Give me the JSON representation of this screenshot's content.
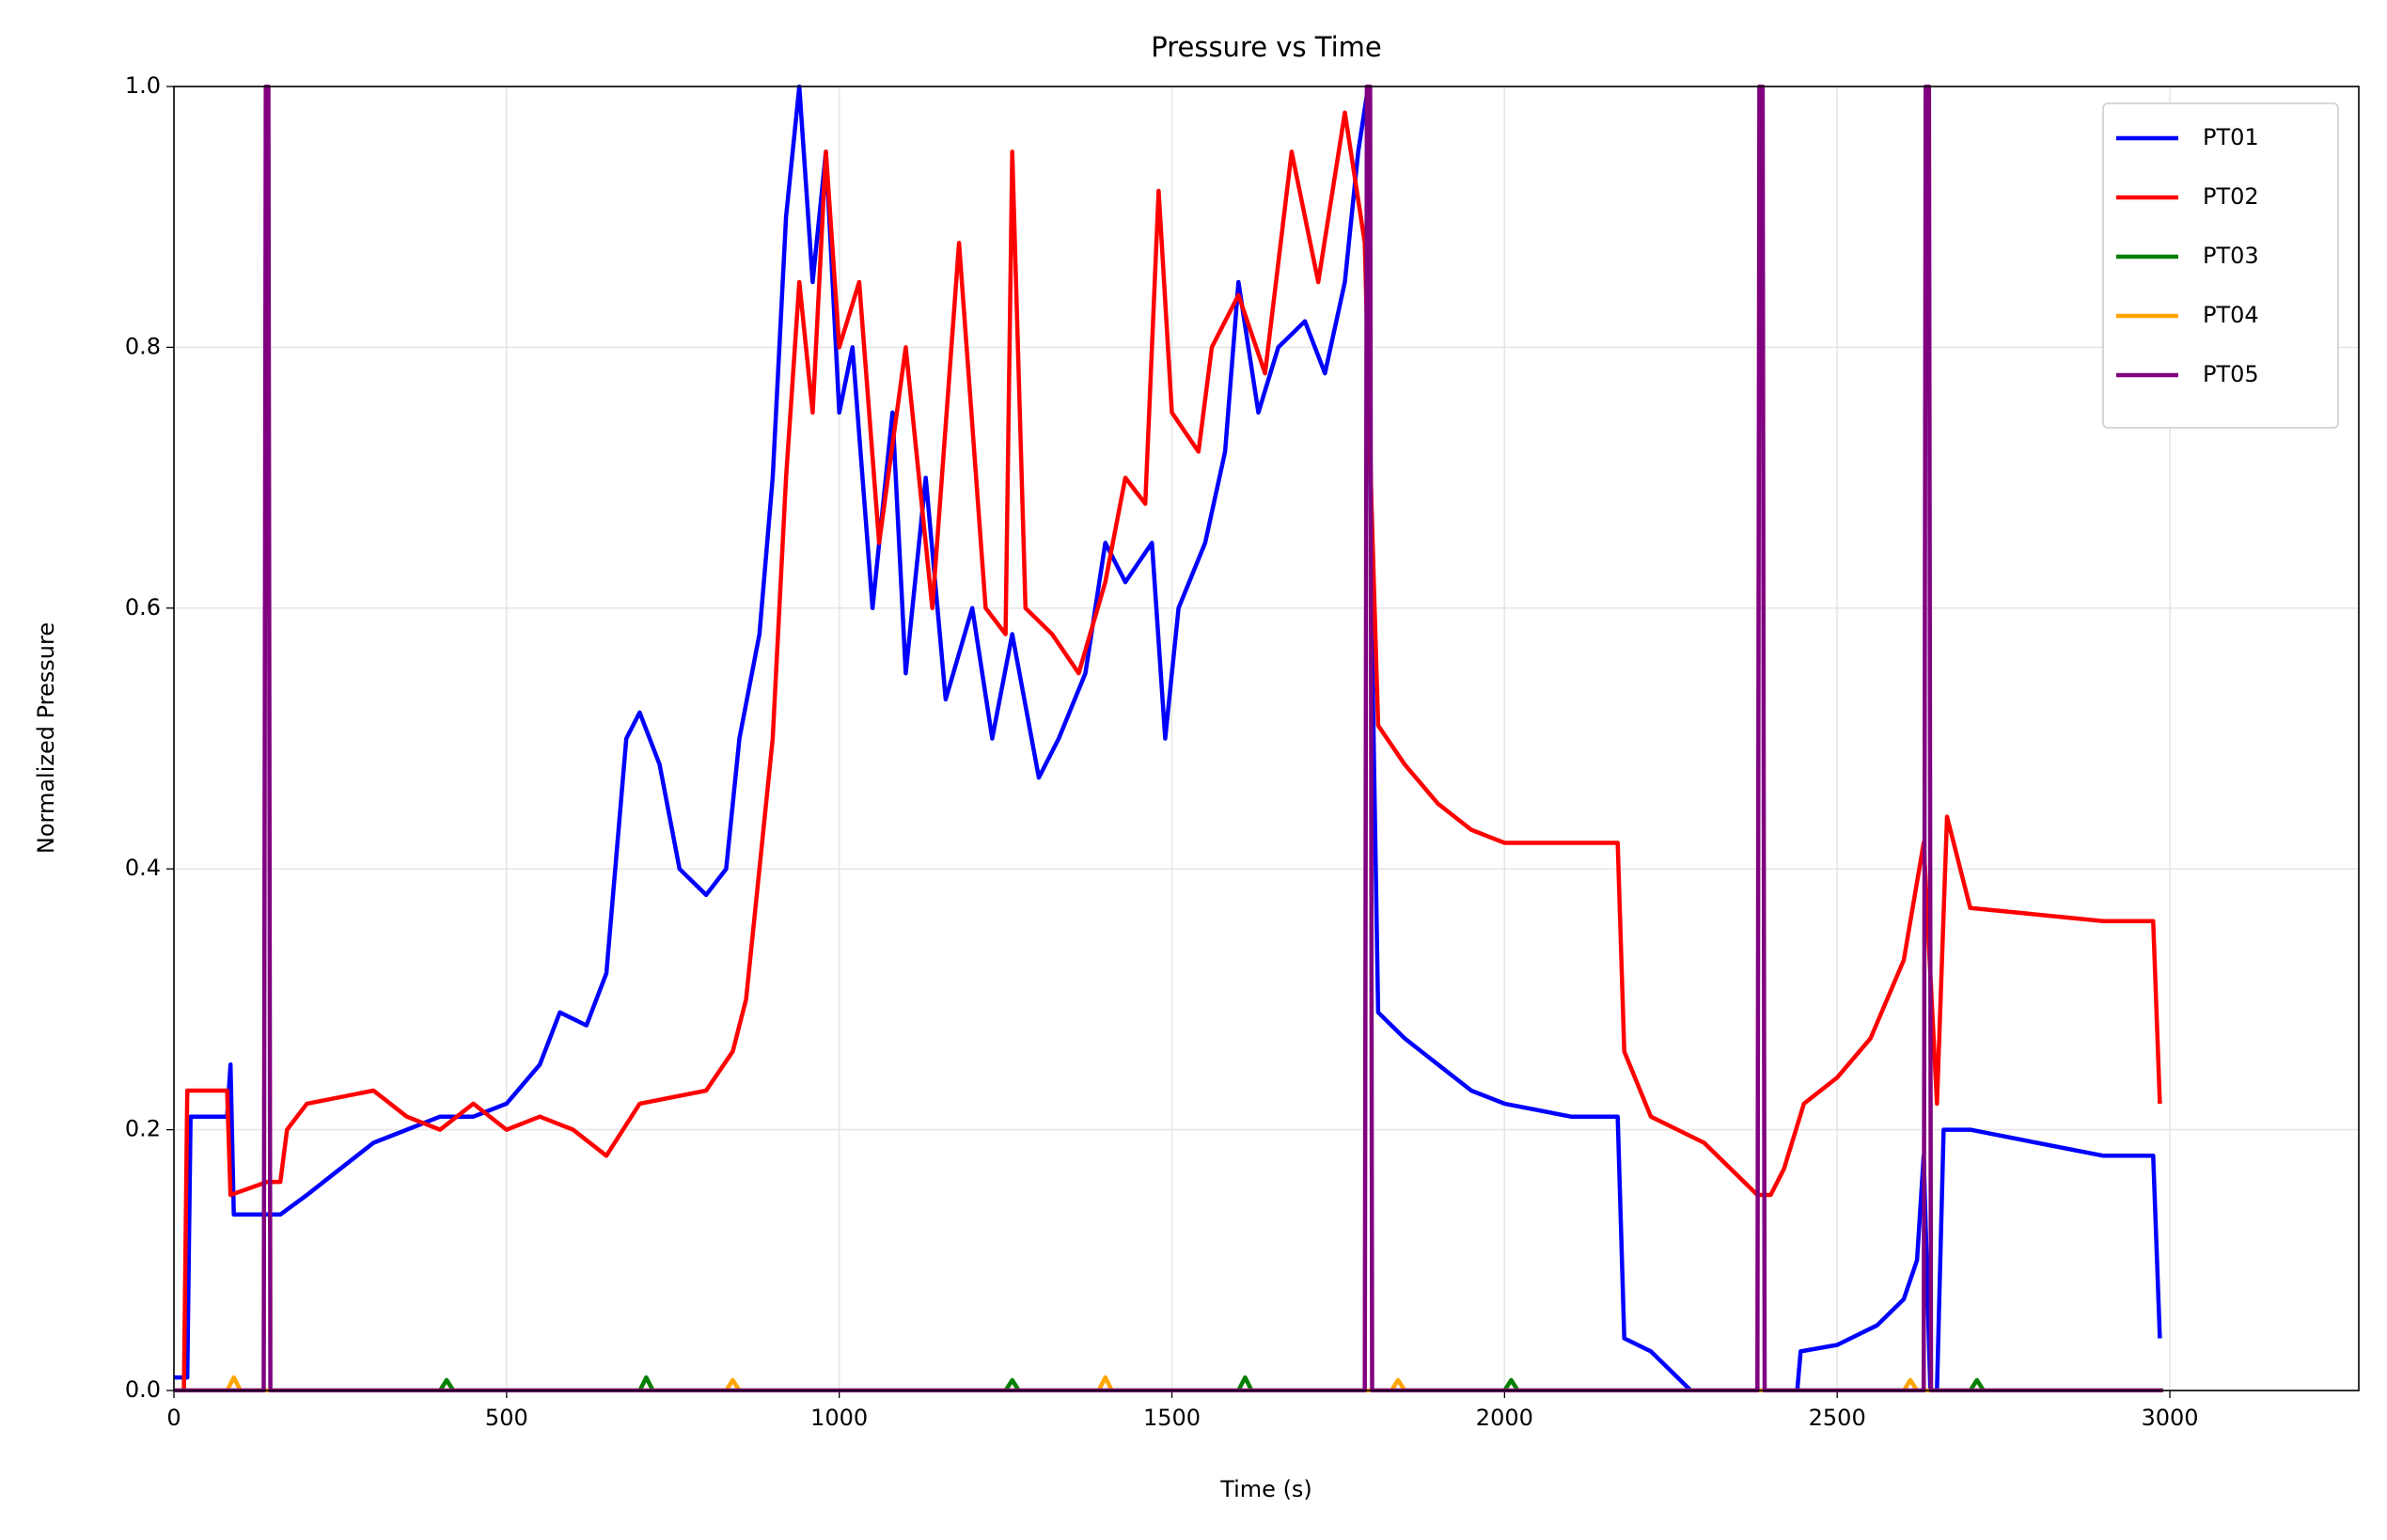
{
  "chart_data": {
    "type": "line",
    "title": "Pressure vs Time",
    "xlabel": "Time (s)",
    "ylabel": "Normalized Pressure",
    "xlim": [
      0,
      3284
    ],
    "ylim": [
      0,
      1
    ],
    "xticks": [
      0,
      500,
      1000,
      1500,
      2000,
      2500,
      3000
    ],
    "yticks": [
      {
        "value": 0,
        "label": "0.0"
      },
      0.2,
      0.4,
      0.6,
      0.8,
      {
        "value": 1,
        "label": "1.0"
      }
    ],
    "grid": true,
    "legend": "upper right",
    "series": [
      {
        "name": "PT01",
        "color": "#0000ff",
        "x": [
          0,
          20,
          25,
          80,
          85,
          90,
          160,
          200,
          250,
          300,
          350,
          400,
          450,
          500,
          550,
          580,
          620,
          650,
          680,
          700,
          730,
          760,
          800,
          830,
          850,
          880,
          900,
          920,
          940,
          960,
          980,
          1000,
          1020,
          1050,
          1080,
          1100,
          1130,
          1160,
          1200,
          1230,
          1260,
          1300,
          1330,
          1370,
          1400,
          1430,
          1470,
          1490,
          1510,
          1550,
          1580,
          1600,
          1630,
          1660,
          1700,
          1730,
          1760,
          1780,
          1795,
          1800,
          1810,
          1850,
          1900,
          1950,
          2000,
          2100,
          2170,
          2180,
          2220,
          2280,
          2290,
          2440,
          2445,
          2500,
          2560,
          2600,
          2620,
          2630,
          2640,
          2650,
          2660,
          2700,
          2800,
          2900,
          2975,
          2985
        ],
        "values": [
          0.01,
          0.01,
          0.21,
          0.21,
          0.25,
          0.135,
          0.135,
          0.15,
          0.17,
          0.19,
          0.2,
          0.21,
          0.21,
          0.22,
          0.25,
          0.29,
          0.28,
          0.32,
          0.5,
          0.52,
          0.48,
          0.4,
          0.38,
          0.4,
          0.5,
          0.58,
          0.7,
          0.9,
          1.0,
          0.85,
          0.95,
          0.75,
          0.8,
          0.6,
          0.75,
          0.55,
          0.7,
          0.53,
          0.6,
          0.5,
          0.58,
          0.47,
          0.5,
          0.55,
          0.65,
          0.62,
          0.65,
          0.5,
          0.6,
          0.65,
          0.72,
          0.85,
          0.75,
          0.8,
          0.82,
          0.78,
          0.85,
          0.95,
          1.0,
          0.6,
          0.29,
          0.27,
          0.25,
          0.23,
          0.22,
          0.21,
          0.21,
          0.04,
          0.03,
          0.0,
          0.0,
          0.0,
          0.03,
          0.035,
          0.05,
          0.07,
          0.1,
          0.18,
          0.0,
          0.0,
          0.2,
          0.2,
          0.19,
          0.18,
          0.18,
          0.04
        ]
      },
      {
        "name": "PT02",
        "color": "#ff0000",
        "x": [
          0,
          15,
          20,
          80,
          85,
          140,
          160,
          170,
          200,
          300,
          350,
          400,
          450,
          500,
          550,
          600,
          650,
          700,
          800,
          840,
          860,
          880,
          900,
          920,
          940,
          960,
          980,
          1000,
          1030,
          1060,
          1100,
          1140,
          1180,
          1220,
          1250,
          1260,
          1280,
          1320,
          1360,
          1400,
          1430,
          1460,
          1480,
          1500,
          1540,
          1560,
          1600,
          1640,
          1680,
          1720,
          1760,
          1790,
          1800,
          1810,
          1850,
          1900,
          1950,
          2000,
          2100,
          2170,
          2180,
          2220,
          2300,
          2380,
          2400,
          2420,
          2450,
          2500,
          2550,
          2600,
          2630,
          2650,
          2665,
          2700,
          2800,
          2900,
          2975,
          2985
        ],
        "values": [
          0.0,
          0.0,
          0.23,
          0.23,
          0.15,
          0.16,
          0.16,
          0.2,
          0.22,
          0.23,
          0.21,
          0.2,
          0.22,
          0.2,
          0.21,
          0.2,
          0.18,
          0.22,
          0.23,
          0.26,
          0.3,
          0.4,
          0.5,
          0.7,
          0.85,
          0.75,
          0.95,
          0.8,
          0.85,
          0.65,
          0.8,
          0.6,
          0.88,
          0.6,
          0.58,
          0.95,
          0.6,
          0.58,
          0.55,
          0.62,
          0.7,
          0.68,
          0.92,
          0.75,
          0.72,
          0.8,
          0.84,
          0.78,
          0.95,
          0.85,
          0.98,
          0.88,
          0.68,
          0.51,
          0.48,
          0.45,
          0.43,
          0.42,
          0.42,
          0.42,
          0.26,
          0.21,
          0.19,
          0.15,
          0.15,
          0.17,
          0.22,
          0.24,
          0.27,
          0.33,
          0.42,
          0.22,
          0.44,
          0.37,
          0.365,
          0.36,
          0.36,
          0.22
        ]
      },
      {
        "name": "PT03",
        "color": "#008000",
        "x": [
          0,
          400,
          410,
          420,
          700,
          710,
          720,
          1250,
          1260,
          1270,
          1600,
          1610,
          1620,
          2000,
          2010,
          2020,
          2700,
          2710,
          2720,
          2990
        ],
        "values": [
          0,
          0,
          0.008,
          0,
          0,
          0.01,
          0,
          0,
          0.008,
          0,
          0,
          0.01,
          0,
          0,
          0.008,
          0,
          0,
          0.008,
          0,
          0
        ]
      },
      {
        "name": "PT04",
        "color": "#ffa500",
        "x": [
          0,
          80,
          90,
          100,
          830,
          840,
          850,
          1390,
          1400,
          1410,
          1830,
          1840,
          1850,
          2600,
          2610,
          2620,
          2990
        ],
        "values": [
          0,
          0,
          0.01,
          0,
          0,
          0.008,
          0,
          0,
          0.01,
          0,
          0,
          0.008,
          0,
          0,
          0.008,
          0,
          0
        ]
      },
      {
        "name": "PT05",
        "color": "#800080",
        "x": [
          0,
          135,
          138,
          142,
          145,
          1790,
          1793,
          1798,
          1801,
          2380,
          2383,
          2388,
          2391,
          2630,
          2633,
          2638,
          2641,
          2990
        ],
        "values": [
          0,
          0,
          1,
          1,
          0,
          0,
          1,
          1,
          0,
          0,
          1,
          1,
          0,
          0,
          1,
          1,
          0,
          0
        ]
      }
    ]
  }
}
